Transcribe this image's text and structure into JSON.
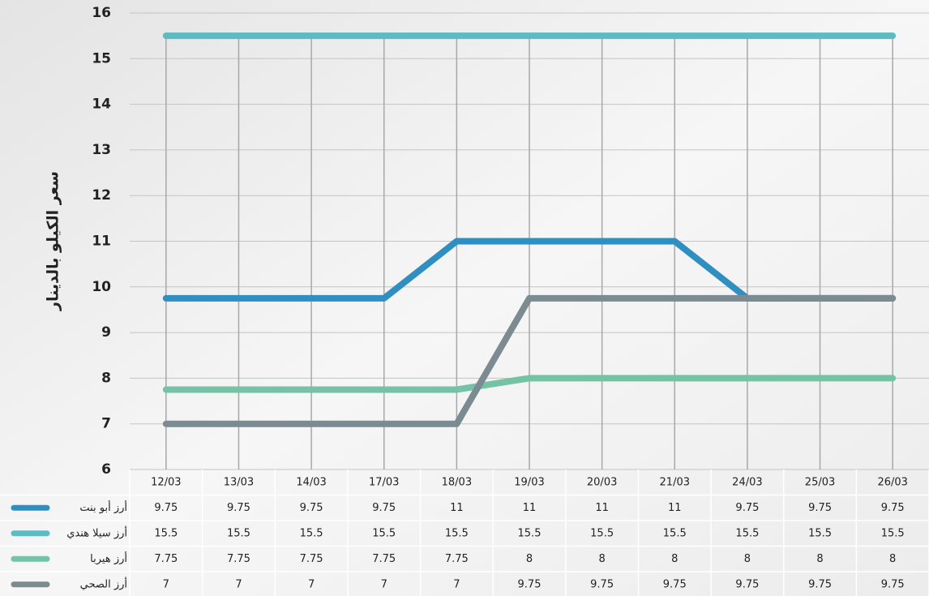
{
  "chart_data": {
    "type": "line",
    "y_label": "سعر الكيلو بالدينار",
    "categories": [
      "12/03",
      "13/03",
      "14/03",
      "17/03",
      "18/03",
      "19/03",
      "20/03",
      "21/03",
      "24/03",
      "25/03",
      "26/03"
    ],
    "series": [
      {
        "name": "أرز أبو بنت",
        "color": "#2f8fc0",
        "values": [
          9.75,
          9.75,
          9.75,
          9.75,
          11,
          11,
          11,
          11,
          9.75,
          9.75,
          9.75
        ]
      },
      {
        "name": "أرز سيلا هندي",
        "color": "#5cbcc4",
        "values": [
          15.5,
          15.5,
          15.5,
          15.5,
          15.5,
          15.5,
          15.5,
          15.5,
          15.5,
          15.5,
          15.5
        ]
      },
      {
        "name": "أرز هيربا",
        "color": "#74c3a6",
        "values": [
          7.75,
          7.75,
          7.75,
          7.75,
          7.75,
          8,
          8,
          8,
          8,
          8,
          8
        ]
      },
      {
        "name": "أرز الصحي",
        "color": "#7b8b91",
        "values": [
          7,
          7,
          7,
          7,
          7,
          9.75,
          9.75,
          9.75,
          9.75,
          9.75,
          9.75
        ]
      }
    ],
    "ylim": [
      6,
      16
    ],
    "yticks": [
      6,
      7,
      8,
      9,
      10,
      11,
      12,
      13,
      14,
      15,
      16
    ],
    "grid": true
  }
}
